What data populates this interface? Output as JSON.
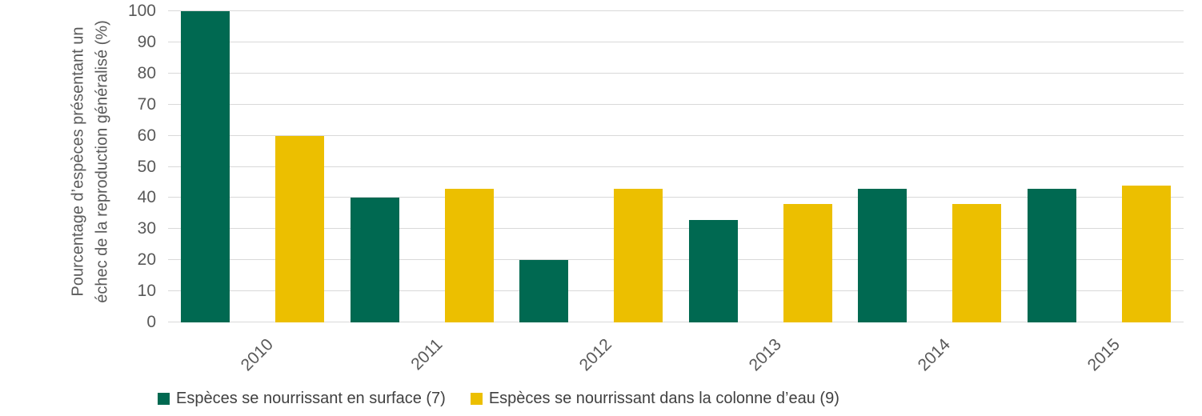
{
  "chart_data": {
    "type": "bar",
    "title": "",
    "categories": [
      "2010",
      "2011",
      "2012",
      "2013",
      "2014",
      "2015"
    ],
    "series": [
      {
        "name": "Espèces se nourrissant en surface (7)",
        "color": "#006951",
        "values": [
          100,
          40,
          20,
          33,
          43,
          43
        ]
      },
      {
        "name": "Espèces se nourrissant dans la colonne d’eau (9)",
        "color": "#ECBF00",
        "values": [
          60,
          43,
          43,
          38,
          38,
          44
        ]
      }
    ],
    "xlabel": "",
    "ylabel_line1": "Pourcentage d’espèces présentant un",
    "ylabel_line2": "échec de la reproduction généralisé (%)",
    "ylim": [
      0,
      100
    ],
    "yticks": [
      0,
      10,
      20,
      30,
      40,
      50,
      60,
      70,
      80,
      90,
      100
    ],
    "grid": "horizontal",
    "legend_position": "bottom"
  },
  "colors": {
    "axis_text": "#595959",
    "legend_text": "#404040",
    "gridline": "#D9D9D9",
    "background": "#FFFFFF",
    "series_green": "#006951",
    "series_yellow": "#ECBF00"
  }
}
